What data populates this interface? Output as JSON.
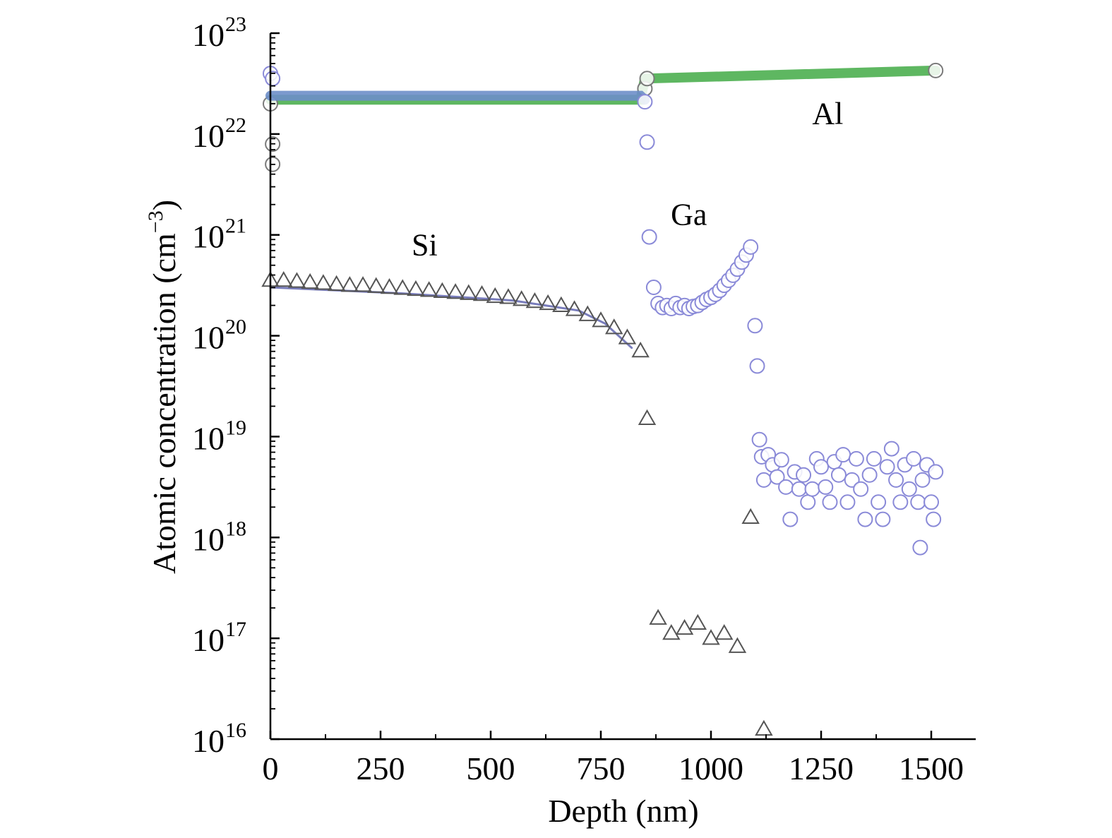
{
  "chart_data": {
    "type": "scatter",
    "xlabel": "Depth (nm)",
    "ylabel_text": "Atomic concentration (cm",
    "ylabel_unit_sup": "−3",
    "ylabel_close": ")",
    "xlim": [
      0,
      1600
    ],
    "ylim_log10": [
      16,
      23
    ],
    "y_scale": "log",
    "grid": false,
    "x_ticks": [
      {
        "value": 0,
        "label": "0"
      },
      {
        "value": 250,
        "label": "250"
      },
      {
        "value": 500,
        "label": "500"
      },
      {
        "value": 750,
        "label": "750"
      },
      {
        "value": 1000,
        "label": "1000"
      },
      {
        "value": 1250,
        "label": "1250"
      },
      {
        "value": 1500,
        "label": "1500"
      }
    ],
    "y_ticks": [
      {
        "exp": 16,
        "base": "10",
        "sup": "16"
      },
      {
        "exp": 17,
        "base": "10",
        "sup": "17"
      },
      {
        "exp": 18,
        "base": "10",
        "sup": "18"
      },
      {
        "exp": 19,
        "base": "10",
        "sup": "19"
      },
      {
        "exp": 20,
        "base": "10",
        "sup": "20"
      },
      {
        "exp": 21,
        "base": "10",
        "sup": "21"
      },
      {
        "exp": 22,
        "base": "10",
        "sup": "22"
      },
      {
        "exp": 23,
        "base": "10",
        "sup": "23"
      }
    ],
    "annotations": [
      {
        "text": "Al",
        "x": 1265,
        "y_log10": 22.1
      },
      {
        "text": "Ga",
        "x": 950,
        "y_log10": 21.1
      },
      {
        "text": "Si",
        "x": 350,
        "y_log10": 20.8
      }
    ],
    "series": [
      {
        "key": "al",
        "marker": "circle",
        "stroke": "#4caf50",
        "fill": "#7bd389",
        "line": [
          [
            0,
            22.34
          ],
          [
            840,
            22.34
          ],
          [
            850,
            22.55
          ],
          [
            1510,
            22.63
          ]
        ],
        "points": [
          {
            "x": 0,
            "y": 22.3
          },
          {
            "x": 5,
            "y": 21.9
          },
          {
            "x": 5,
            "y": 21.7
          },
          {
            "x": 850,
            "y": 22.45
          },
          {
            "x": 855,
            "y": 22.55
          },
          {
            "x": 1510,
            "y": 22.63
          }
        ]
      },
      {
        "key": "ga",
        "marker": "circle",
        "stroke": "#6d8ec9",
        "fill": "#9eb7e0",
        "line": [
          [
            0,
            22.38
          ],
          [
            840,
            22.38
          ],
          [
            850,
            22.34
          ]
        ],
        "points": [
          {
            "x": 0,
            "y": 22.6
          },
          {
            "x": 5,
            "y": 22.55
          },
          {
            "x": 850,
            "y": 22.32
          },
          {
            "x": 855,
            "y": 21.92
          },
          {
            "x": 860,
            "y": 20.98
          },
          {
            "x": 870,
            "y": 20.48
          },
          {
            "x": 880,
            "y": 20.32
          },
          {
            "x": 890,
            "y": 20.28
          },
          {
            "x": 900,
            "y": 20.3
          },
          {
            "x": 910,
            "y": 20.27
          },
          {
            "x": 920,
            "y": 20.32
          },
          {
            "x": 930,
            "y": 20.28
          },
          {
            "x": 940,
            "y": 20.3
          },
          {
            "x": 950,
            "y": 20.27
          },
          {
            "x": 960,
            "y": 20.29
          },
          {
            "x": 970,
            "y": 20.3
          },
          {
            "x": 980,
            "y": 20.33
          },
          {
            "x": 990,
            "y": 20.36
          },
          {
            "x": 1000,
            "y": 20.38
          },
          {
            "x": 1010,
            "y": 20.41
          },
          {
            "x": 1020,
            "y": 20.45
          },
          {
            "x": 1030,
            "y": 20.5
          },
          {
            "x": 1040,
            "y": 20.55
          },
          {
            "x": 1050,
            "y": 20.6
          },
          {
            "x": 1060,
            "y": 20.66
          },
          {
            "x": 1070,
            "y": 20.73
          },
          {
            "x": 1080,
            "y": 20.8
          },
          {
            "x": 1090,
            "y": 20.88
          },
          {
            "x": 1100,
            "y": 20.1
          },
          {
            "x": 1105,
            "y": 19.7
          },
          {
            "x": 1110,
            "y": 18.97
          },
          {
            "x": 1115,
            "y": 18.8
          },
          {
            "x": 1120,
            "y": 18.57
          },
          {
            "x": 1130,
            "y": 18.82
          },
          {
            "x": 1140,
            "y": 18.72
          },
          {
            "x": 1150,
            "y": 18.6
          },
          {
            "x": 1160,
            "y": 18.77
          },
          {
            "x": 1170,
            "y": 18.5
          },
          {
            "x": 1180,
            "y": 18.18
          },
          {
            "x": 1190,
            "y": 18.65
          },
          {
            "x": 1200,
            "y": 18.48
          },
          {
            "x": 1210,
            "y": 18.62
          },
          {
            "x": 1220,
            "y": 18.35
          },
          {
            "x": 1230,
            "y": 18.48
          },
          {
            "x": 1240,
            "y": 18.78
          },
          {
            "x": 1250,
            "y": 18.7
          },
          {
            "x": 1260,
            "y": 18.5
          },
          {
            "x": 1270,
            "y": 18.35
          },
          {
            "x": 1280,
            "y": 18.75
          },
          {
            "x": 1290,
            "y": 18.62
          },
          {
            "x": 1300,
            "y": 18.82
          },
          {
            "x": 1310,
            "y": 18.35
          },
          {
            "x": 1320,
            "y": 18.57
          },
          {
            "x": 1330,
            "y": 18.78
          },
          {
            "x": 1340,
            "y": 18.48
          },
          {
            "x": 1350,
            "y": 18.18
          },
          {
            "x": 1360,
            "y": 18.62
          },
          {
            "x": 1370,
            "y": 18.78
          },
          {
            "x": 1380,
            "y": 18.35
          },
          {
            "x": 1390,
            "y": 18.18
          },
          {
            "x": 1400,
            "y": 18.7
          },
          {
            "x": 1410,
            "y": 18.88
          },
          {
            "x": 1420,
            "y": 18.57
          },
          {
            "x": 1430,
            "y": 18.35
          },
          {
            "x": 1440,
            "y": 18.72
          },
          {
            "x": 1450,
            "y": 18.48
          },
          {
            "x": 1460,
            "y": 18.78
          },
          {
            "x": 1470,
            "y": 18.35
          },
          {
            "x": 1475,
            "y": 17.9
          },
          {
            "x": 1480,
            "y": 18.57
          },
          {
            "x": 1490,
            "y": 18.72
          },
          {
            "x": 1500,
            "y": 18.35
          },
          {
            "x": 1505,
            "y": 18.18
          },
          {
            "x": 1510,
            "y": 18.65
          }
        ]
      },
      {
        "key": "si",
        "marker": "triangle",
        "stroke": "#6a6fb5",
        "fill": "none",
        "line": [
          [
            0,
            20.48
          ],
          [
            300,
            20.42
          ],
          [
            550,
            20.35
          ],
          [
            700,
            20.25
          ],
          [
            760,
            20.12
          ],
          [
            820,
            19.88
          ]
        ],
        "points": [
          {
            "x": 0,
            "y": 20.55
          },
          {
            "x": 30,
            "y": 20.55
          },
          {
            "x": 60,
            "y": 20.54
          },
          {
            "x": 90,
            "y": 20.53
          },
          {
            "x": 120,
            "y": 20.52
          },
          {
            "x": 150,
            "y": 20.51
          },
          {
            "x": 180,
            "y": 20.5
          },
          {
            "x": 210,
            "y": 20.5
          },
          {
            "x": 240,
            "y": 20.49
          },
          {
            "x": 270,
            "y": 20.48
          },
          {
            "x": 300,
            "y": 20.47
          },
          {
            "x": 330,
            "y": 20.46
          },
          {
            "x": 360,
            "y": 20.45
          },
          {
            "x": 390,
            "y": 20.44
          },
          {
            "x": 420,
            "y": 20.43
          },
          {
            "x": 450,
            "y": 20.42
          },
          {
            "x": 480,
            "y": 20.41
          },
          {
            "x": 510,
            "y": 20.39
          },
          {
            "x": 540,
            "y": 20.38
          },
          {
            "x": 570,
            "y": 20.36
          },
          {
            "x": 600,
            "y": 20.34
          },
          {
            "x": 630,
            "y": 20.32
          },
          {
            "x": 660,
            "y": 20.3
          },
          {
            "x": 690,
            "y": 20.26
          },
          {
            "x": 720,
            "y": 20.21
          },
          {
            "x": 750,
            "y": 20.15
          },
          {
            "x": 780,
            "y": 20.08
          },
          {
            "x": 810,
            "y": 19.98
          },
          {
            "x": 840,
            "y": 19.85
          },
          {
            "x": 855,
            "y": 19.18
          },
          {
            "x": 880,
            "y": 17.2
          },
          {
            "x": 910,
            "y": 17.05
          },
          {
            "x": 940,
            "y": 17.1
          },
          {
            "x": 970,
            "y": 17.15
          },
          {
            "x": 1000,
            "y": 17.0
          },
          {
            "x": 1030,
            "y": 17.05
          },
          {
            "x": 1060,
            "y": 16.92
          },
          {
            "x": 1090,
            "y": 18.2
          },
          {
            "x": 1120,
            "y": 16.1
          }
        ]
      }
    ]
  }
}
